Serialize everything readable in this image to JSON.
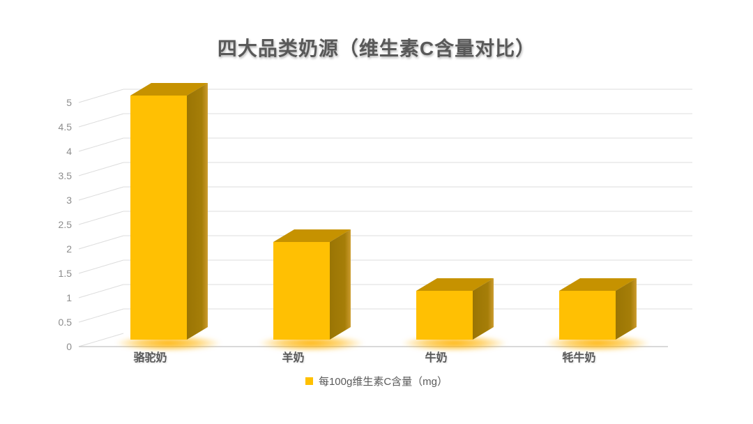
{
  "chart_data": {
    "type": "bar",
    "projection": "3d-oblique-column",
    "title": "四大品类奶源（维生素C含量对比）",
    "categories": [
      "骆驼奶",
      "羊奶",
      "牛奶",
      "牦牛奶"
    ],
    "series": [
      {
        "name": "每100g维生素C含量（mg）",
        "values": [
          5,
          2,
          1,
          1
        ]
      }
    ],
    "xlabel": "",
    "ylabel": "",
    "ylim": [
      0,
      5
    ],
    "ytick_step": 0.5,
    "ytick_labels": [
      "0",
      "0.5",
      "1",
      "1.5",
      "2",
      "2.5",
      "3",
      "3.5",
      "4",
      "4.5",
      "5"
    ],
    "grid": true,
    "legend": {
      "position": "bottom-center",
      "label": "每100g维生素C含量（mg）",
      "marker_color": "#FFC000"
    },
    "colors": {
      "bar_front": "#FFC003",
      "bar_top": "#C69200",
      "bar_side_dark": "#9A7504",
      "bar_side_mid": "#A67E08",
      "bar_side_light": "#CD9F33",
      "glow": "#FFB200",
      "gridline": "#DCDCDC",
      "axis_line": "#C2C2C2",
      "title_text": "#595959",
      "tick_text": "#8C8C8C",
      "category_text": "#595959",
      "background": "#FFFFFF"
    }
  }
}
